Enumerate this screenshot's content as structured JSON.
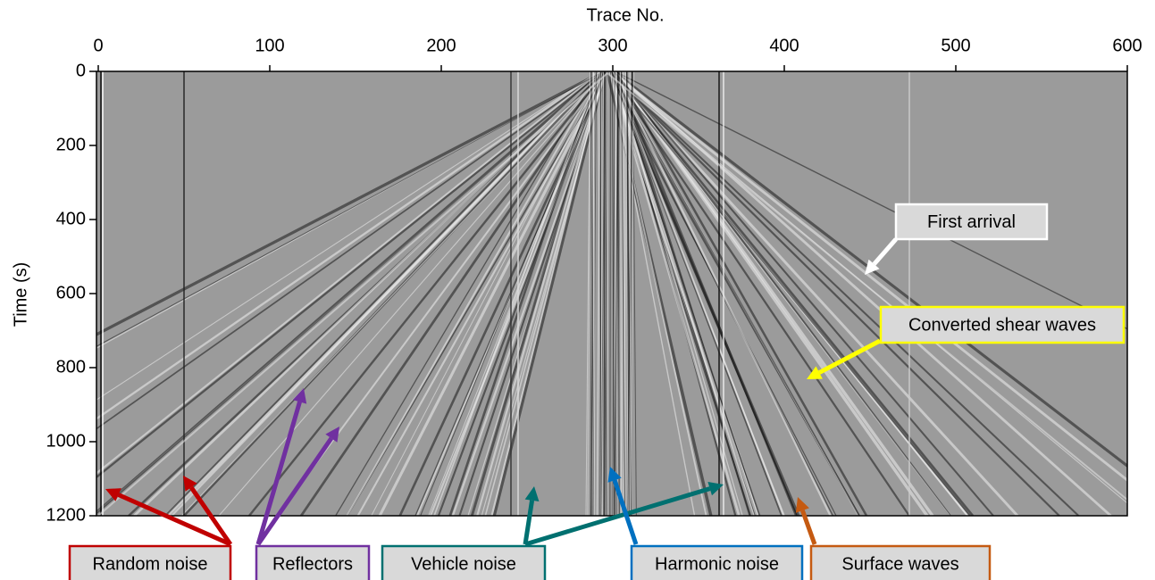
{
  "chart_data": {
    "type": "seismic",
    "x_label": "Trace No.",
    "y_label": "Time (s)",
    "xlim": [
      0,
      600
    ],
    "xticks": [
      0,
      100,
      200,
      300,
      400,
      500,
      600
    ],
    "ylim": [
      1200,
      0
    ],
    "yticks": [
      0,
      200,
      400,
      600,
      800,
      1000,
      1200
    ],
    "annotations": [
      {
        "text": "First arrival",
        "color": "#ffffff"
      },
      {
        "text": "Converted shear waves",
        "color": "#ffff00"
      },
      {
        "text": "Random noise",
        "color": "#c00000"
      },
      {
        "text": "Reflectors",
        "color": "#7030a0"
      },
      {
        "text": "Vehicle noise",
        "color": "#007070"
      },
      {
        "text": "Harmonic noise",
        "color": "#0070c0"
      },
      {
        "text": "Surface waves",
        "color": "#c55a11"
      }
    ]
  }
}
